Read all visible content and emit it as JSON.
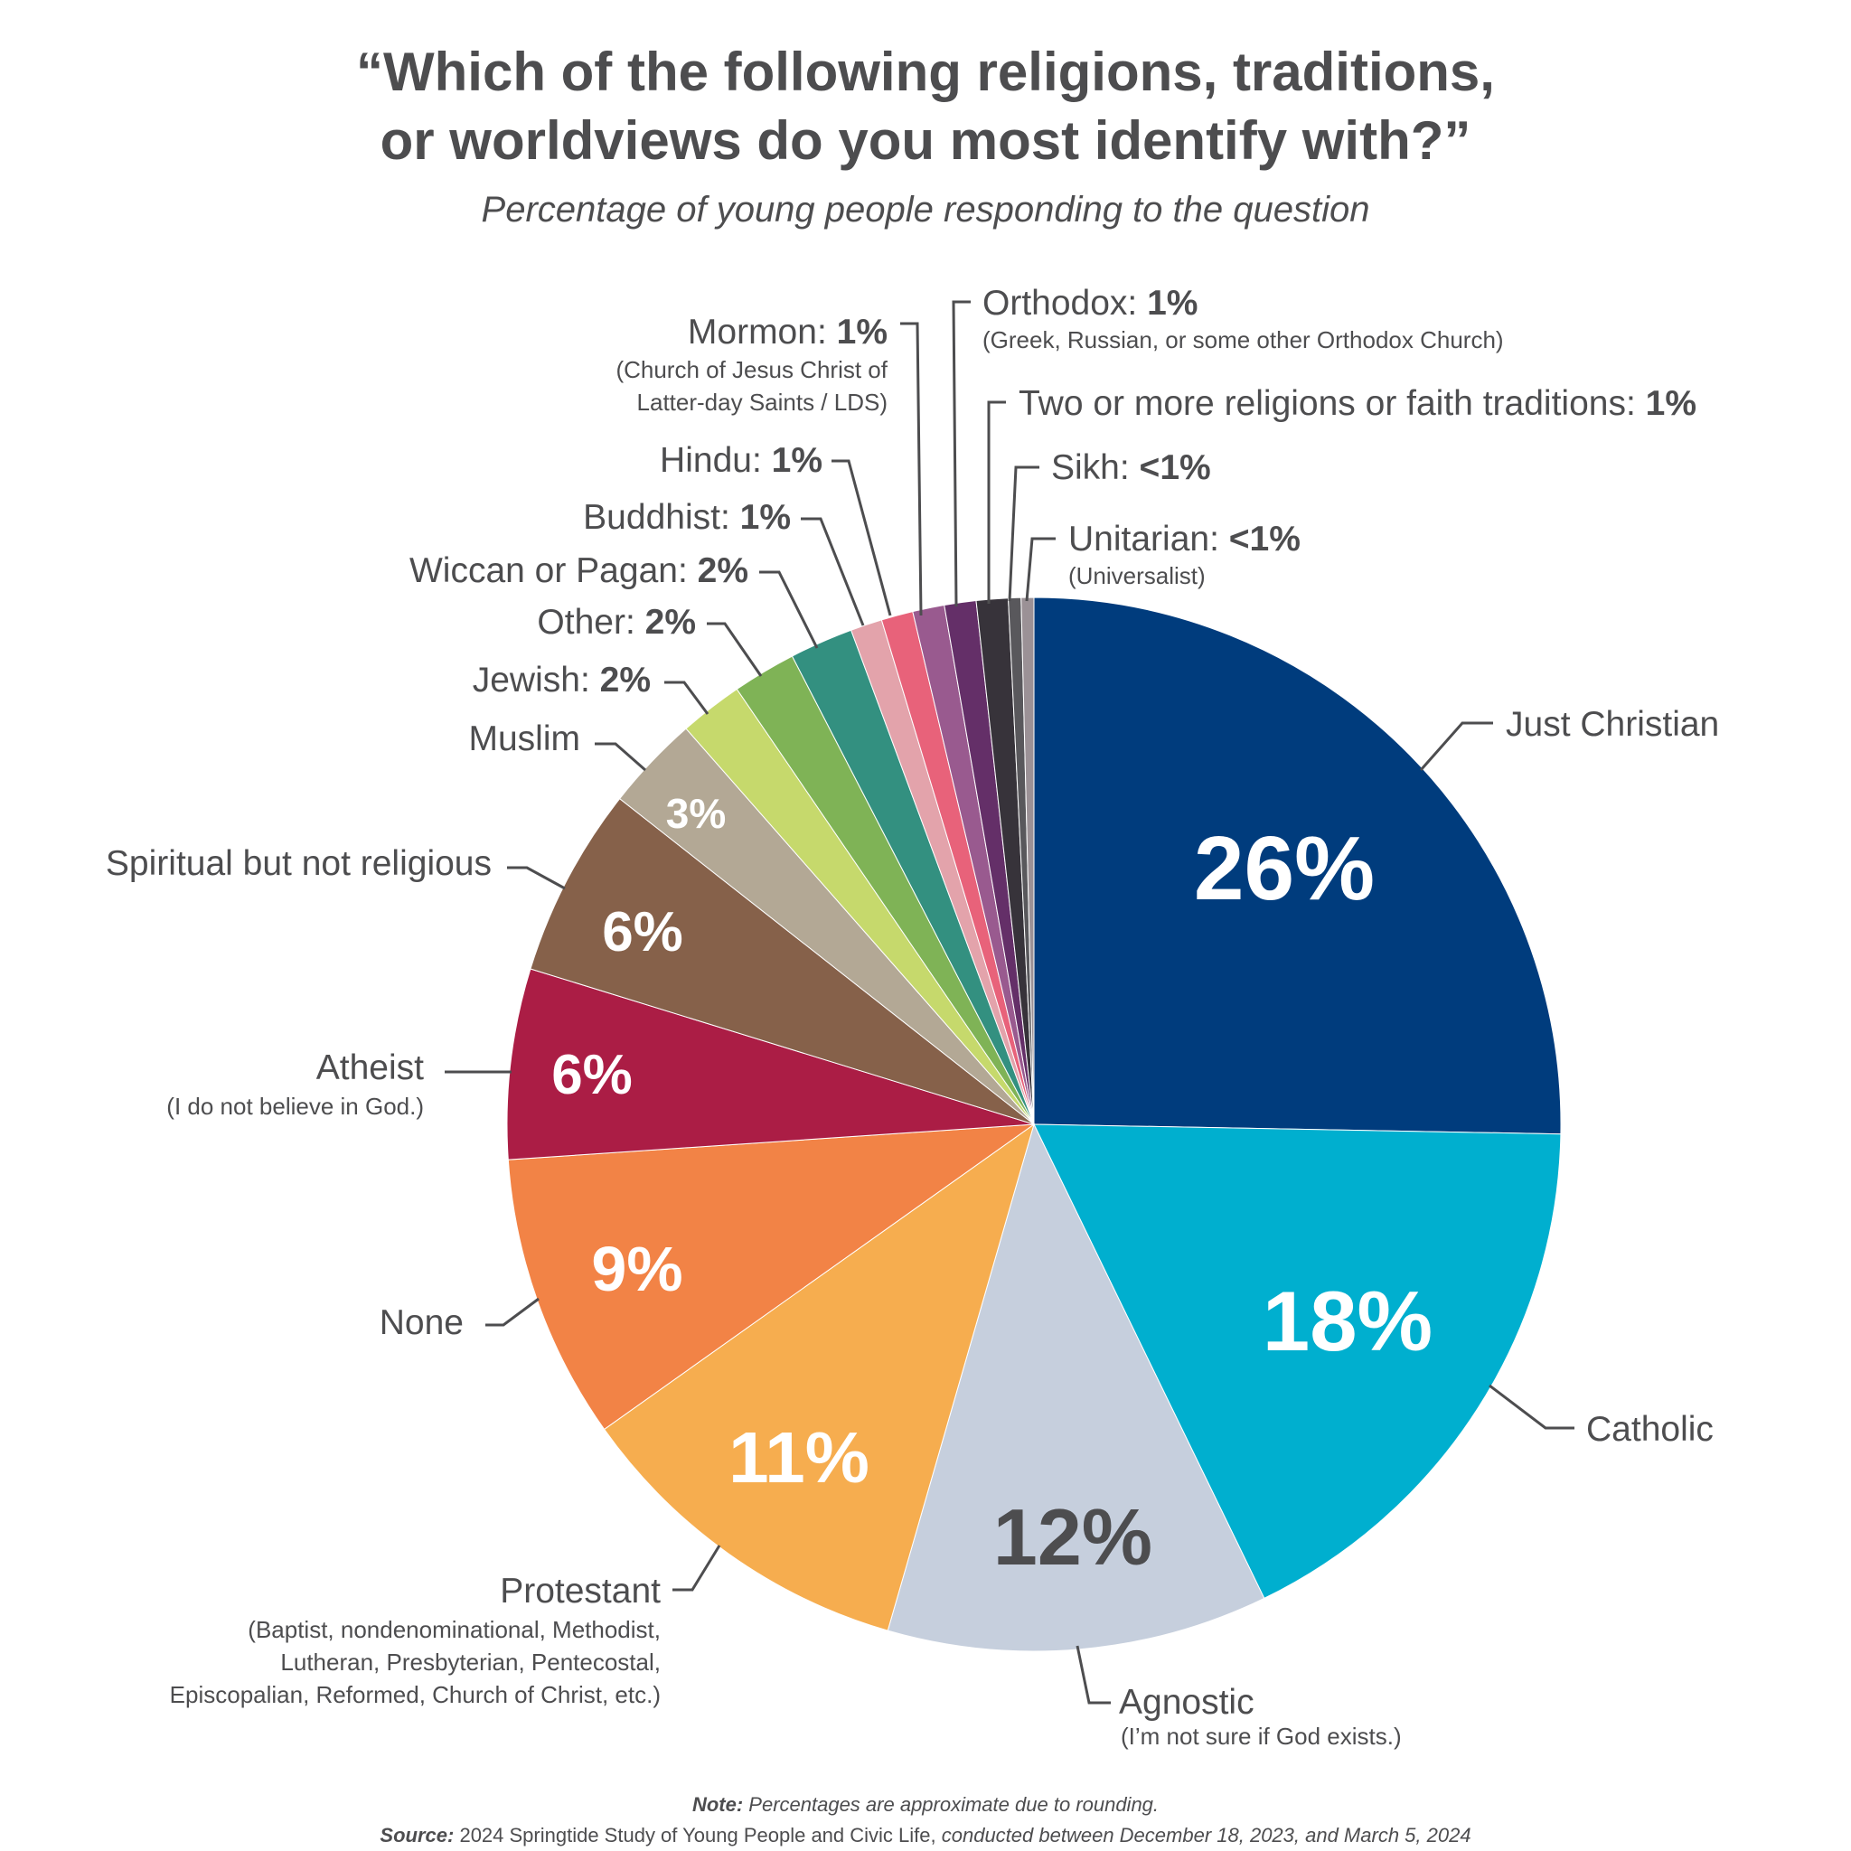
{
  "chart_data": {
    "type": "pie",
    "title_line1": "“Which of the following religions, traditions,",
    "title_line2": "or worldviews do you most identify with?”",
    "subtitle": "Percentage of young people responding to the question",
    "slices": [
      {
        "label": "Just Christian",
        "value": 26,
        "display": "26%",
        "color": "#003c7d"
      },
      {
        "label": "Catholic",
        "value": 18,
        "display": "18%",
        "color": "#00afcf"
      },
      {
        "label": "Agnostic",
        "value": 12,
        "display": "12%",
        "color": "#c6cfdd",
        "note": "(I’m not sure if God exists.)"
      },
      {
        "label": "Protestant",
        "value": 11,
        "display": "11%",
        "color": "#f6ad4f",
        "note_lines": [
          "(Baptist, nondenominational, Methodist,",
          "Lutheran, Presbyterian, Pentecostal,",
          "Episcopalian, Reformed, Church of Christ, etc.)"
        ]
      },
      {
        "label": "None",
        "value": 9,
        "display": "9%",
        "color": "#f28346"
      },
      {
        "label": "Atheist",
        "value": 6,
        "display": "6%",
        "color": "#ab1d45",
        "note": "(I do not believe in God.)"
      },
      {
        "label": "Spiritual but not religious",
        "value": 6,
        "display": "6%",
        "color": "#86614a"
      },
      {
        "label": "Muslim",
        "value": 3,
        "display": "3%",
        "color": "#b3a895"
      },
      {
        "label": "Jewish:",
        "value": 2,
        "display": "2%",
        "color": "#c6d96c"
      },
      {
        "label": "Other:",
        "value": 2,
        "display": "2%",
        "color": "#7fb356"
      },
      {
        "label": "Wiccan or Pagan:",
        "value": 2,
        "display": "2%",
        "color": "#339080"
      },
      {
        "label": "Buddhist:",
        "value": 1,
        "display": "1%",
        "color": "#e3a3ab"
      },
      {
        "label": "Hindu:",
        "value": 1,
        "display": "1%",
        "color": "#e8627a"
      },
      {
        "label": "Mormon:",
        "value": 1,
        "display": "1%",
        "color": "#995a8f",
        "note_lines": [
          "(Church of Jesus Christ of",
          "Latter-day Saints / LDS)"
        ]
      },
      {
        "label": "Orthodox:",
        "value": 1,
        "display": "1%",
        "color": "#642f68",
        "note": "(Greek, Russian, or some other Orthodox Church)"
      },
      {
        "label": "Two or more religions or faith traditions:",
        "value": 1,
        "display": "1%",
        "color": "#37333a"
      },
      {
        "label": "Sikh:",
        "value": 0.4,
        "display": "<1%",
        "color": "#59585c"
      },
      {
        "label": "Unitarian:",
        "value": 0.4,
        "display": "<1%",
        "color": "#9b9196",
        "note": "(Universalist)"
      }
    ]
  },
  "footer": {
    "note_label": "Note:",
    "note_text": " Percentages are approximate due to rounding.",
    "source_label": "Source:",
    "source_text": " 2024 Springtide Study of Young People and Civic Life,",
    "source_italic": " conducted between December 18, 2023, and March 5, 2024"
  }
}
